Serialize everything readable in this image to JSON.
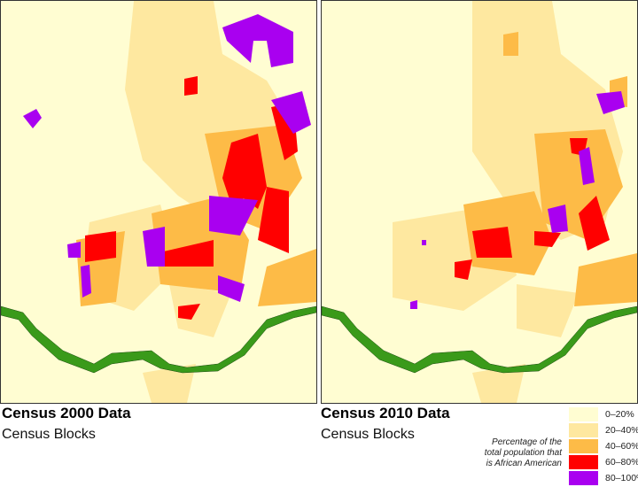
{
  "maps": [
    {
      "title": "Census 2000 Data",
      "subtitle": "Census Blocks"
    },
    {
      "title": "Census 2010 Data",
      "subtitle": "Census Blocks"
    }
  ],
  "legend": {
    "title": "Percentage of the total population that is African American",
    "classes": [
      {
        "label": "0–20%",
        "color": "#fffdd2"
      },
      {
        "label": "20–40%",
        "color": "#fee8a0"
      },
      {
        "label": "40–60%",
        "color": "#fdbb47"
      },
      {
        "label": "60–80%",
        "color": "#ff0000"
      },
      {
        "label": "80–100%",
        "color": "#a900f0"
      }
    ]
  },
  "colors": {
    "background": "#fffdd2",
    "river": "#3a9a1a"
  }
}
